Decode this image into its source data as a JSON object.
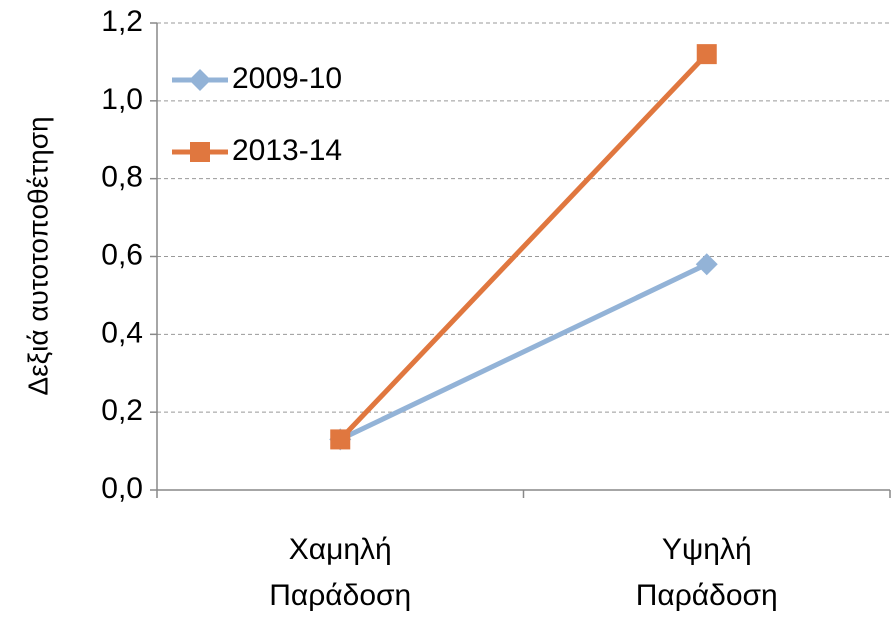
{
  "chart_data": {
    "type": "line",
    "y_label": "Δεξιά αυτοτοποθέτηση",
    "categories": [
      "Χαμηλή Παράδοση",
      "Υψηλή Παράδοση"
    ],
    "series": [
      {
        "name": "2009-10",
        "color": "#93b3d7",
        "marker": "diamond",
        "values": [
          0.13,
          0.58
        ]
      },
      {
        "name": "2013-14",
        "color": "#e0773f",
        "marker": "square",
        "values": [
          0.13,
          1.12
        ]
      }
    ],
    "ylim": [
      0,
      1.2
    ],
    "yticks": [
      {
        "value": 0,
        "label": "0,0"
      },
      {
        "value": 0.2,
        "label": "0,2"
      },
      {
        "value": 0.4,
        "label": "0,4"
      },
      {
        "value": 0.6,
        "label": "0,6"
      },
      {
        "value": 0.8,
        "label": "0,8"
      },
      {
        "value": 1.0,
        "label": "1,0"
      },
      {
        "value": 1.2,
        "label": "1,2"
      }
    ],
    "grid": true,
    "legend": "top-left"
  }
}
